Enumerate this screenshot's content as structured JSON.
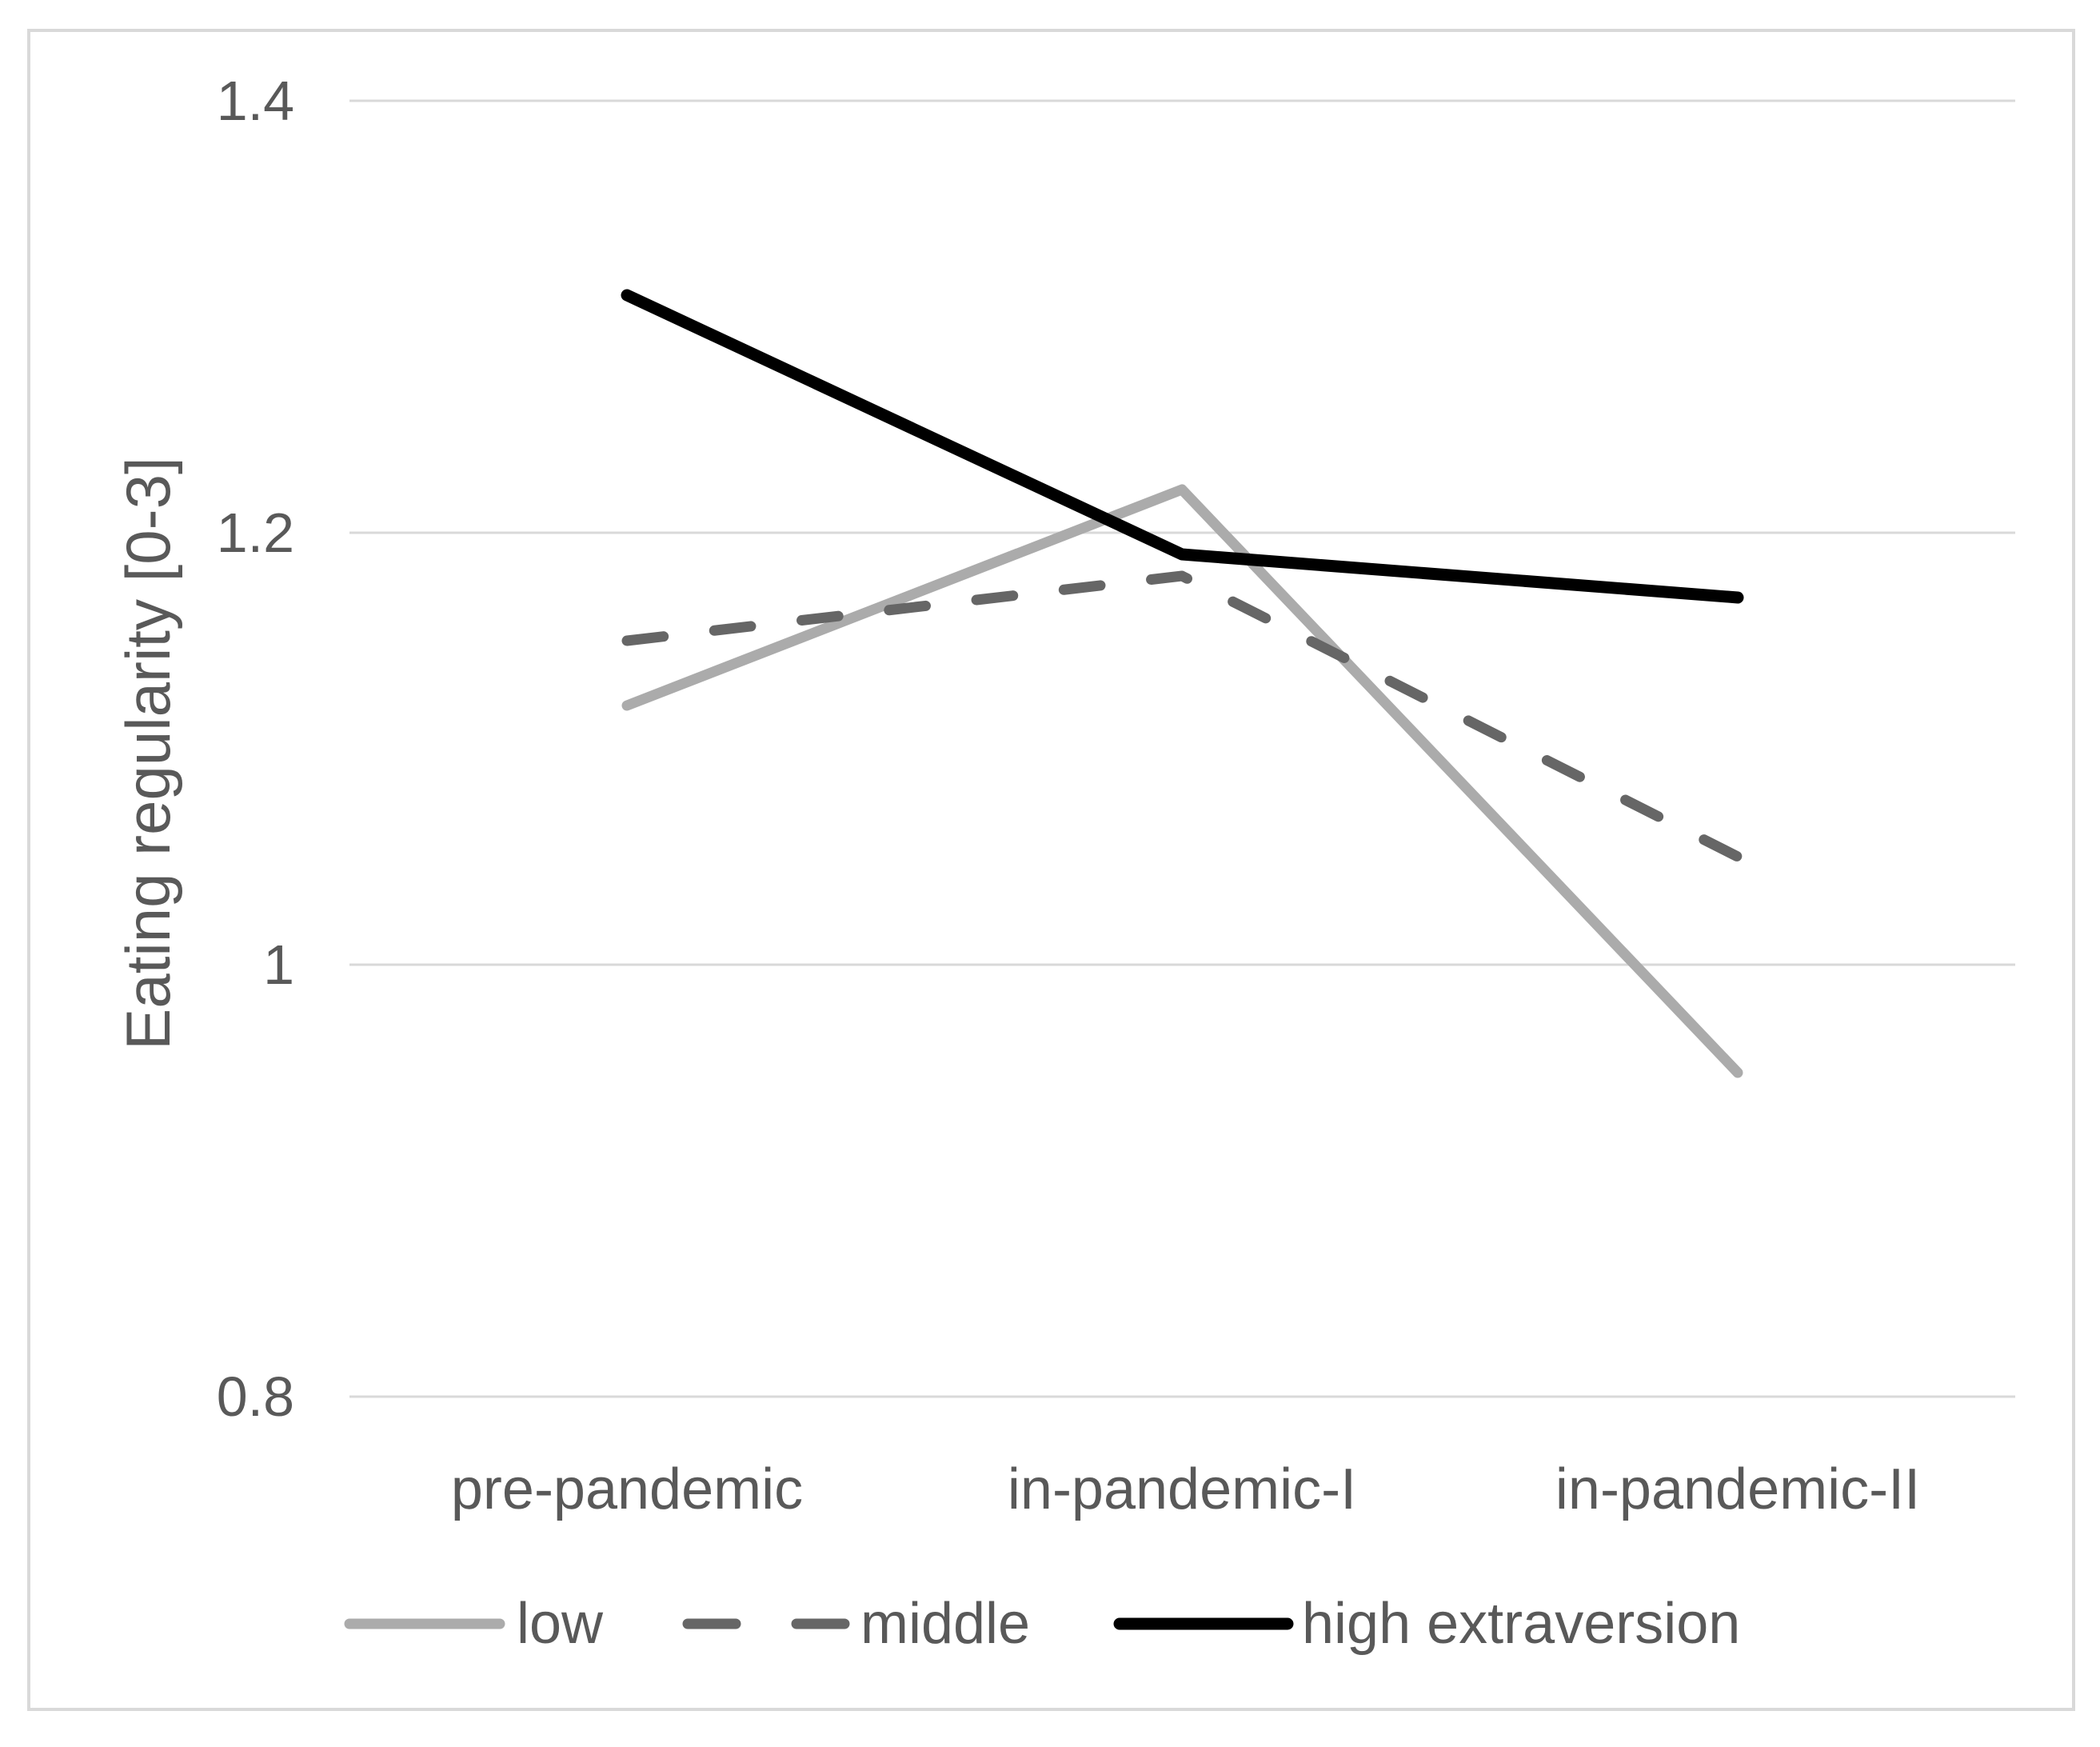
{
  "chart_data": {
    "type": "line",
    "title": "",
    "categories": [
      "pre-pandemic",
      "in-pandemic-I",
      "in-pandemic-II"
    ],
    "series": [
      {
        "name": "low",
        "values": [
          1.12,
          1.22,
          0.95
        ],
        "color": "#ababab",
        "style": "solid"
      },
      {
        "name": "middle",
        "values": [
          1.15,
          1.18,
          1.05
        ],
        "color": "#666666",
        "style": "dashed"
      },
      {
        "name": "high extraversion",
        "values": [
          1.31,
          1.19,
          1.17
        ],
        "color": "#000000",
        "style": "solid"
      }
    ],
    "xlabel": "",
    "ylabel": "Eating regularity [0-3]",
    "yticks": [
      {
        "value": 1.4,
        "label": "1.4"
      },
      {
        "value": 1.2,
        "label": "1.2"
      },
      {
        "value": 1.0,
        "label": "1"
      },
      {
        "value": 0.8,
        "label": "0.8"
      }
    ],
    "ylim": [
      0.74,
      1.45
    ],
    "grid": true,
    "legend_position": "bottom",
    "colors": {
      "axis_text": "#595959",
      "gridline": "#d9d9d9",
      "frame_border": "#d9d9d9",
      "background": "#ffffff"
    }
  }
}
